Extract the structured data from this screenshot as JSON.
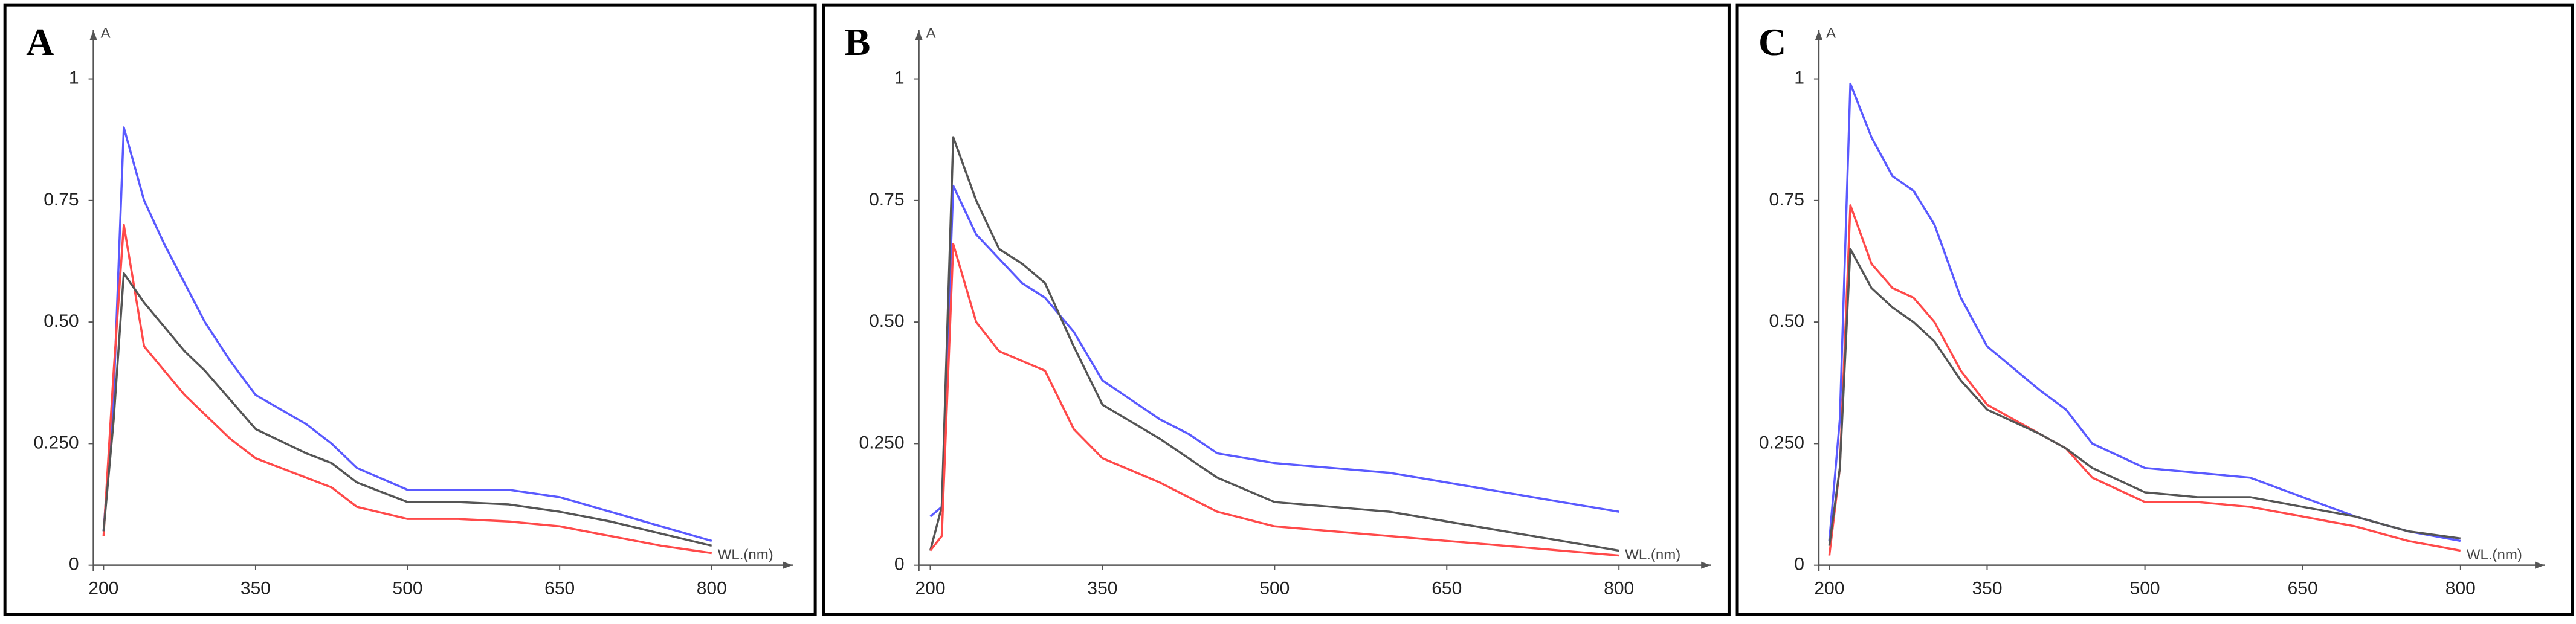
{
  "chart_data": [
    {
      "type": "line",
      "title": "A",
      "ylabel": "A",
      "xlabel": "WL.(nm)",
      "x": [
        200,
        210,
        220,
        240,
        260,
        280,
        300,
        325,
        350,
        400,
        425,
        450,
        500,
        550,
        600,
        650,
        700,
        750,
        800
      ],
      "xlim": [
        190,
        880
      ],
      "xticks": [
        200,
        350,
        500,
        650,
        800
      ],
      "ylim": [
        0,
        1.1
      ],
      "yticks": [
        0,
        {
          "value": 0.25,
          "label": "0.250"
        },
        {
          "value": 0.5,
          "label": "0.50"
        },
        0.75,
        1
      ],
      "series": [
        {
          "color": "#5a5aff",
          "values": [
            0.07,
            0.35,
            0.9,
            0.75,
            0.66,
            0.58,
            0.5,
            0.42,
            0.35,
            0.29,
            0.25,
            0.2,
            0.155,
            0.155,
            0.155,
            0.14,
            0.11,
            0.08,
            0.05
          ]
        },
        {
          "color": "#ff4a4a",
          "values": [
            0.06,
            0.4,
            0.7,
            0.45,
            0.4,
            0.35,
            0.31,
            0.26,
            0.22,
            0.18,
            0.16,
            0.12,
            0.095,
            0.095,
            0.09,
            0.08,
            0.06,
            0.04,
            0.025
          ]
        },
        {
          "color": "#555555",
          "values": [
            0.07,
            0.3,
            0.6,
            0.54,
            0.49,
            0.44,
            0.4,
            0.34,
            0.28,
            0.23,
            0.21,
            0.17,
            0.13,
            0.13,
            0.125,
            0.11,
            0.09,
            0.065,
            0.04
          ]
        }
      ]
    },
    {
      "type": "line",
      "title": "B",
      "ylabel": "A",
      "xlabel": "WL.(nm)",
      "x": [
        200,
        210,
        220,
        240,
        260,
        280,
        300,
        325,
        350,
        400,
        425,
        450,
        500,
        550,
        600,
        650,
        700,
        750,
        800
      ],
      "xlim": [
        190,
        880
      ],
      "xticks": [
        200,
        350,
        500,
        650,
        800
      ],
      "ylim": [
        0,
        1.1
      ],
      "yticks": [
        0,
        {
          "value": 0.25,
          "label": "0.250"
        },
        {
          "value": 0.5,
          "label": "0.50"
        },
        0.75,
        1
      ],
      "series": [
        {
          "color": "#5a5aff",
          "values": [
            0.1,
            0.12,
            0.78,
            0.68,
            0.63,
            0.58,
            0.55,
            0.48,
            0.38,
            0.3,
            0.27,
            0.23,
            0.21,
            0.2,
            0.19,
            0.17,
            0.15,
            0.13,
            0.11
          ]
        },
        {
          "color": "#555555",
          "values": [
            0.03,
            0.12,
            0.88,
            0.75,
            0.65,
            0.62,
            0.58,
            0.45,
            0.33,
            0.26,
            0.22,
            0.18,
            0.13,
            0.12,
            0.11,
            0.09,
            0.07,
            0.05,
            0.03
          ]
        },
        {
          "color": "#ff4a4a",
          "values": [
            0.03,
            0.06,
            0.66,
            0.5,
            0.44,
            0.42,
            0.4,
            0.28,
            0.22,
            0.17,
            0.14,
            0.11,
            0.08,
            0.07,
            0.06,
            0.05,
            0.04,
            0.03,
            0.02
          ]
        }
      ]
    },
    {
      "type": "line",
      "title": "C",
      "ylabel": "A",
      "xlabel": "WL.(nm)",
      "x": [
        200,
        210,
        220,
        240,
        260,
        280,
        300,
        325,
        350,
        400,
        425,
        450,
        500,
        550,
        600,
        650,
        700,
        750,
        800
      ],
      "xlim": [
        190,
        880
      ],
      "xticks": [
        200,
        350,
        500,
        650,
        800
      ],
      "ylim": [
        0,
        1.1
      ],
      "yticks": [
        0,
        {
          "value": 0.25,
          "label": "0.250"
        },
        {
          "value": 0.5,
          "label": "0.50"
        },
        0.75,
        1
      ],
      "series": [
        {
          "color": "#5a5aff",
          "values": [
            0.05,
            0.3,
            0.99,
            0.88,
            0.8,
            0.77,
            0.7,
            0.55,
            0.45,
            0.36,
            0.32,
            0.25,
            0.2,
            0.19,
            0.18,
            0.14,
            0.1,
            0.07,
            0.05
          ]
        },
        {
          "color": "#ff4a4a",
          "values": [
            0.02,
            0.2,
            0.74,
            0.62,
            0.57,
            0.55,
            0.5,
            0.4,
            0.33,
            0.27,
            0.24,
            0.18,
            0.13,
            0.13,
            0.12,
            0.1,
            0.08,
            0.05,
            0.03
          ]
        },
        {
          "color": "#555555",
          "values": [
            0.04,
            0.2,
            0.65,
            0.57,
            0.53,
            0.5,
            0.46,
            0.38,
            0.32,
            0.27,
            0.24,
            0.2,
            0.15,
            0.14,
            0.14,
            0.12,
            0.1,
            0.07,
            0.055
          ]
        }
      ]
    }
  ]
}
